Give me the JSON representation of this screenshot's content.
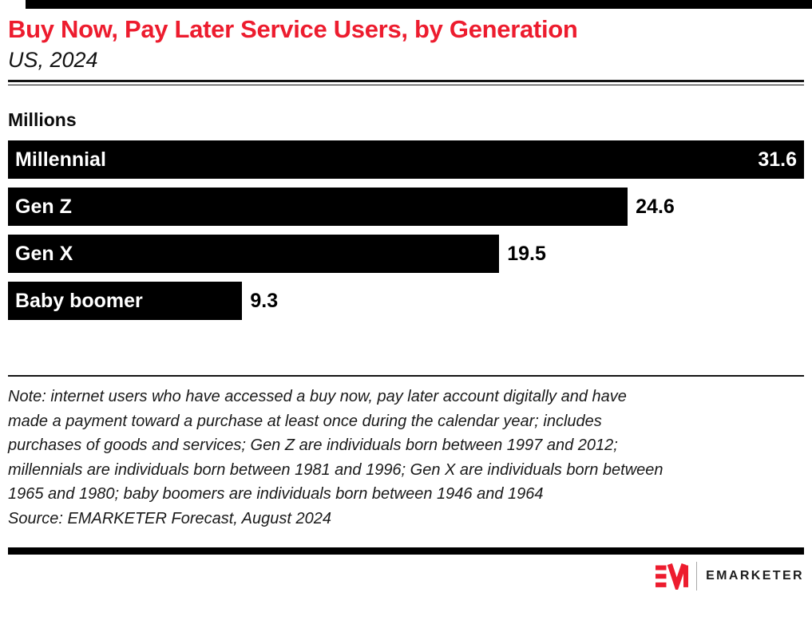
{
  "chart_data": {
    "type": "bar",
    "orientation": "horizontal",
    "title": "Buy Now, Pay Later Service Users, by Generation",
    "subtitle": "US, 2024",
    "unit_label": "Millions",
    "categories": [
      "Millennial",
      "Gen Z",
      "Gen X",
      "Baby boomer"
    ],
    "values": [
      31.6,
      24.6,
      19.5,
      9.3
    ],
    "xlim": [
      0,
      31.6
    ],
    "grid": false,
    "legend": "none",
    "bar_color": "#000000",
    "category_label_color": "#ffffff",
    "value_label_inside": [
      true,
      false,
      false,
      false
    ]
  },
  "footnote": {
    "note_lines": [
      "Note: internet users who have accessed a buy now, pay later account digitally and have",
      "made a payment toward a purchase at least once during the calendar year; includes",
      "purchases of goods and services; Gen Z are individuals born between 1997 and 2012;",
      "millennials are individuals born between 1981 and 1996; Gen X are individuals born between",
      "1965 and 1980; baby boomers are individuals born between 1946 and 1964"
    ],
    "source": "Source: EMARKETER Forecast, August 2024"
  },
  "branding": {
    "brand_name": "EMARKETER",
    "brand_red": "#ED1C2E",
    "title_red": "#ED1C2E"
  }
}
